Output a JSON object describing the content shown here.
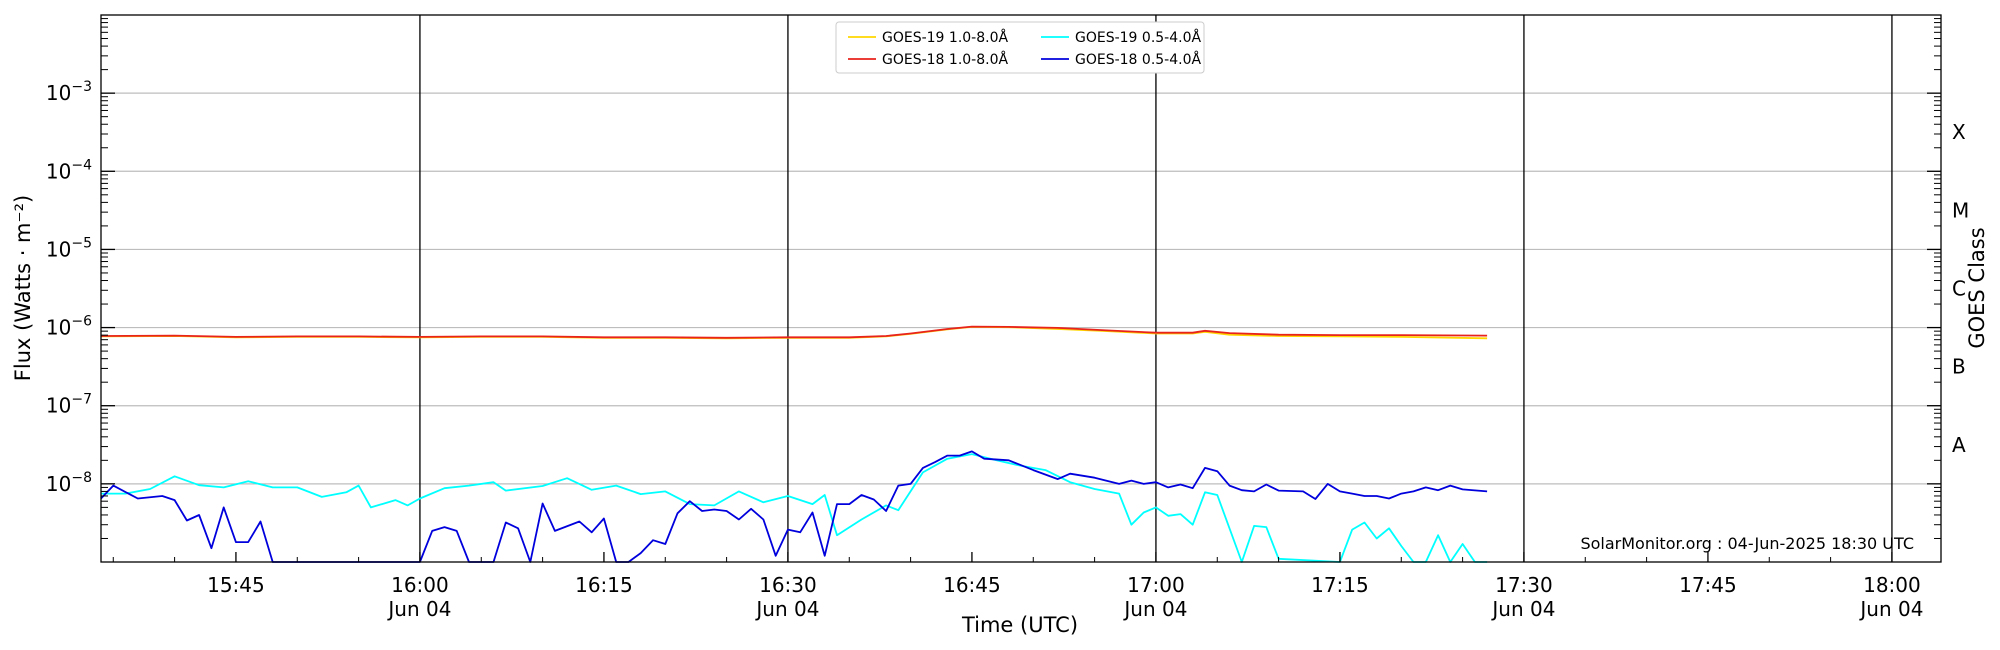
{
  "chart_data": {
    "type": "line",
    "ylabel": "Flux (Watts · m⁻²)",
    "ylabel_right": "GOES Class",
    "xlabel": "Time (UTC)",
    "credit": "SolarMonitor.org : 04-Jun-2025 18:30 UTC",
    "x_range": [
      "15:34",
      "18:04"
    ],
    "y_range": [
      1e-09,
      0.01
    ],
    "y_scale": "log",
    "grid": "horizontal at decades",
    "legend_placement": "top-center",
    "y_ticks": [
      {
        "exp": "-8",
        "value": 1e-08
      },
      {
        "exp": "-7",
        "value": 1e-07
      },
      {
        "exp": "-6",
        "value": 1e-06
      },
      {
        "exp": "-5",
        "value": 1e-05
      },
      {
        "exp": "-4",
        "value": 0.0001
      },
      {
        "exp": "-3",
        "value": 0.001
      }
    ],
    "x_ticks": [
      {
        "t": "15:45",
        "date": ""
      },
      {
        "t": "16:00",
        "date": "Jun 04"
      },
      {
        "t": "16:15",
        "date": ""
      },
      {
        "t": "16:30",
        "date": "Jun 04"
      },
      {
        "t": "16:45",
        "date": ""
      },
      {
        "t": "17:00",
        "date": "Jun 04"
      },
      {
        "t": "17:15",
        "date": ""
      },
      {
        "t": "17:30",
        "date": "Jun 04"
      },
      {
        "t": "17:45",
        "date": ""
      },
      {
        "t": "18:00",
        "date": "Jun 04"
      }
    ],
    "vertical_lines": [
      "16:00",
      "16:30",
      "17:00",
      "17:30",
      "18:00"
    ],
    "goes_classes": [
      {
        "label": "A",
        "value": 3.16e-08
      },
      {
        "label": "B",
        "value": 3.16e-07
      },
      {
        "label": "C",
        "value": 3.16e-06
      },
      {
        "label": "M",
        "value": 3.16e-05
      },
      {
        "label": "X",
        "value": 0.000316
      }
    ],
    "series": [
      {
        "name": "GOES-19 1.0-8.0Å",
        "color": "#ffd700",
        "points": [
          [
            "15:34",
            7.7e-07
          ],
          [
            "15:40",
            7.8e-07
          ],
          [
            "15:45",
            7.5e-07
          ],
          [
            "15:50",
            7.6e-07
          ],
          [
            "15:55",
            7.6e-07
          ],
          [
            "16:00",
            7.5e-07
          ],
          [
            "16:05",
            7.6e-07
          ],
          [
            "16:10",
            7.6e-07
          ],
          [
            "16:15",
            7.4e-07
          ],
          [
            "16:20",
            7.4e-07
          ],
          [
            "16:25",
            7.3e-07
          ],
          [
            "16:30",
            7.4e-07
          ],
          [
            "16:35",
            7.4e-07
          ],
          [
            "16:38",
            7.7e-07
          ],
          [
            "16:40",
            8.3e-07
          ],
          [
            "16:43",
            9.5e-07
          ],
          [
            "16:45",
            1.02e-06
          ],
          [
            "16:48",
            1.01e-06
          ],
          [
            "16:52",
            9.6e-07
          ],
          [
            "16:56",
            9e-07
          ],
          [
            "17:00",
            8.4e-07
          ],
          [
            "17:03",
            8.4e-07
          ],
          [
            "17:04",
            8.8e-07
          ],
          [
            "17:06",
            8.1e-07
          ],
          [
            "17:10",
            7.8e-07
          ],
          [
            "17:15",
            7.7e-07
          ],
          [
            "17:20",
            7.6e-07
          ],
          [
            "17:27",
            7.3e-07
          ]
        ]
      },
      {
        "name": "GOES-18 1.0-8.0Å",
        "color": "#e8231b",
        "points": [
          [
            "15:34",
            7.8e-07
          ],
          [
            "15:40",
            7.9e-07
          ],
          [
            "15:45",
            7.6e-07
          ],
          [
            "15:50",
            7.7e-07
          ],
          [
            "15:55",
            7.7e-07
          ],
          [
            "16:00",
            7.6e-07
          ],
          [
            "16:05",
            7.7e-07
          ],
          [
            "16:10",
            7.7e-07
          ],
          [
            "16:15",
            7.5e-07
          ],
          [
            "16:20",
            7.5e-07
          ],
          [
            "16:25",
            7.4e-07
          ],
          [
            "16:30",
            7.5e-07
          ],
          [
            "16:35",
            7.5e-07
          ],
          [
            "16:38",
            7.8e-07
          ],
          [
            "16:40",
            8.4e-07
          ],
          [
            "16:43",
            9.6e-07
          ],
          [
            "16:45",
            1.03e-06
          ],
          [
            "16:48",
            1.02e-06
          ],
          [
            "16:52",
            9.9e-07
          ],
          [
            "16:56",
            9.2e-07
          ],
          [
            "17:00",
            8.6e-07
          ],
          [
            "17:03",
            8.6e-07
          ],
          [
            "17:04",
            9.1e-07
          ],
          [
            "17:06",
            8.5e-07
          ],
          [
            "17:10",
            8.1e-07
          ],
          [
            "17:15",
            8e-07
          ],
          [
            "17:20",
            8e-07
          ],
          [
            "17:27",
            7.9e-07
          ]
        ]
      },
      {
        "name": "GOES-19 0.5-4.0Å",
        "color": "#00ffff",
        "points": [
          [
            "15:34",
            7.5e-09
          ],
          [
            "15:36",
            7.5e-09
          ],
          [
            "15:38",
            8.6e-09
          ],
          [
            "15:40",
            1.25e-08
          ],
          [
            "15:42",
            9.6e-09
          ],
          [
            "15:44",
            9e-09
          ],
          [
            "15:46",
            1.08e-08
          ],
          [
            "15:48",
            9e-09
          ],
          [
            "15:50",
            9e-09
          ],
          [
            "15:52",
            6.8e-09
          ],
          [
            "15:54",
            7.8e-09
          ],
          [
            "15:55",
            9.5e-09
          ],
          [
            "15:56",
            5e-09
          ],
          [
            "15:58",
            6.2e-09
          ],
          [
            "15:59",
            5.3e-09
          ],
          [
            "16:00",
            6.5e-09
          ],
          [
            "16:02",
            8.8e-09
          ],
          [
            "16:04",
            9.5e-09
          ],
          [
            "16:06",
            1.05e-08
          ],
          [
            "16:07",
            8.2e-09
          ],
          [
            "16:10",
            9.4e-09
          ],
          [
            "16:12",
            1.18e-08
          ],
          [
            "16:14",
            8.4e-09
          ],
          [
            "16:16",
            9.5e-09
          ],
          [
            "16:18",
            7.4e-09
          ],
          [
            "16:20",
            8e-09
          ],
          [
            "16:22",
            5.5e-09
          ],
          [
            "16:24",
            5.3e-09
          ],
          [
            "16:26",
            8e-09
          ],
          [
            "16:28",
            5.8e-09
          ],
          [
            "16:30",
            7e-09
          ],
          [
            "16:32",
            5.5e-09
          ],
          [
            "16:33",
            7.2e-09
          ],
          [
            "16:34",
            2.2e-09
          ],
          [
            "16:36",
            3.5e-09
          ],
          [
            "16:38",
            5.3e-09
          ],
          [
            "16:39",
            4.6e-09
          ],
          [
            "16:41",
            1.4e-08
          ],
          [
            "16:43",
            2.1e-08
          ],
          [
            "16:45",
            2.4e-08
          ],
          [
            "16:47",
            2e-08
          ],
          [
            "16:49",
            1.7e-08
          ],
          [
            "16:51",
            1.5e-08
          ],
          [
            "16:53",
            1.05e-08
          ],
          [
            "16:55",
            8.6e-09
          ],
          [
            "16:57",
            7.5e-09
          ],
          [
            "16:58",
            3e-09
          ],
          [
            "16:59",
            4.3e-09
          ],
          [
            "17:00",
            5e-09
          ],
          [
            "17:01",
            3.9e-09
          ],
          [
            "17:02",
            4.1e-09
          ],
          [
            "17:03",
            3e-09
          ],
          [
            "17:04",
            7.8e-09
          ],
          [
            "17:05",
            7.2e-09
          ],
          [
            "17:07",
            1e-09
          ],
          [
            "17:08",
            2.9e-09
          ],
          [
            "17:09",
            2.8e-09
          ],
          [
            "17:10",
            1.1e-09
          ],
          [
            "17:15",
            1e-09
          ],
          [
            "17:16",
            2.6e-09
          ],
          [
            "17:17",
            3.2e-09
          ],
          [
            "17:18",
            2e-09
          ],
          [
            "17:19",
            2.7e-09
          ],
          [
            "17:20",
            1.6e-09
          ],
          [
            "17:21",
            1e-09
          ],
          [
            "17:22",
            1e-09
          ],
          [
            "17:23",
            2.2e-09
          ],
          [
            "17:24",
            1e-09
          ],
          [
            "17:25",
            1.7e-09
          ],
          [
            "17:26",
            1e-09
          ],
          [
            "17:27",
            1e-09
          ]
        ]
      },
      {
        "name": "GOES-18 0.5-4.0Å",
        "color": "#0000dd",
        "points": [
          [
            "15:34",
            6.5e-09
          ],
          [
            "15:35",
            9.5e-09
          ],
          [
            "15:37",
            6.5e-09
          ],
          [
            "15:39",
            7e-09
          ],
          [
            "15:40",
            6.2e-09
          ],
          [
            "15:41",
            3.4e-09
          ],
          [
            "15:42",
            4e-09
          ],
          [
            "15:43",
            1.5e-09
          ],
          [
            "15:44",
            5e-09
          ],
          [
            "15:45",
            1.8e-09
          ],
          [
            "15:46",
            1.8e-09
          ],
          [
            "15:47",
            3.3e-09
          ],
          [
            "15:48",
            1e-09
          ],
          [
            "16:00",
            1e-09
          ],
          [
            "16:01",
            2.5e-09
          ],
          [
            "16:02",
            2.8e-09
          ],
          [
            "16:03",
            2.5e-09
          ],
          [
            "16:04",
            1e-09
          ],
          [
            "16:06",
            1e-09
          ],
          [
            "16:07",
            3.2e-09
          ],
          [
            "16:08",
            2.7e-09
          ],
          [
            "16:09",
            1e-09
          ],
          [
            "16:10",
            5.6e-09
          ],
          [
            "16:11",
            2.5e-09
          ],
          [
            "16:13",
            3.3e-09
          ],
          [
            "16:14",
            2.4e-09
          ],
          [
            "16:15",
            3.6e-09
          ],
          [
            "16:16",
            1e-09
          ],
          [
            "16:17",
            1e-09
          ],
          [
            "16:18",
            1.3e-09
          ],
          [
            "16:19",
            1.9e-09
          ],
          [
            "16:20",
            1.7e-09
          ],
          [
            "16:21",
            4.2e-09
          ],
          [
            "16:22",
            6e-09
          ],
          [
            "16:23",
            4.5e-09
          ],
          [
            "16:24",
            4.7e-09
          ],
          [
            "16:25",
            4.5e-09
          ],
          [
            "16:26",
            3.5e-09
          ],
          [
            "16:27",
            4.8e-09
          ],
          [
            "16:28",
            3.5e-09
          ],
          [
            "16:29",
            1.2e-09
          ],
          [
            "16:30",
            2.6e-09
          ],
          [
            "16:31",
            2.4e-09
          ],
          [
            "16:32",
            4.3e-09
          ],
          [
            "16:33",
            1.2e-09
          ],
          [
            "16:34",
            5.5e-09
          ],
          [
            "16:35",
            5.5e-09
          ],
          [
            "16:36",
            7.2e-09
          ],
          [
            "16:37",
            6.3e-09
          ],
          [
            "16:38",
            4.5e-09
          ],
          [
            "16:39",
            9.5e-09
          ],
          [
            "16:40",
            1e-08
          ],
          [
            "16:41",
            1.6e-08
          ],
          [
            "16:42",
            1.9e-08
          ],
          [
            "16:43",
            2.3e-08
          ],
          [
            "16:44",
            2.3e-08
          ],
          [
            "16:45",
            2.6e-08
          ],
          [
            "16:46",
            2.1e-08
          ],
          [
            "16:48",
            2e-08
          ],
          [
            "16:50",
            1.5e-08
          ],
          [
            "16:52",
            1.15e-08
          ],
          [
            "16:53",
            1.35e-08
          ],
          [
            "16:55",
            1.2e-08
          ],
          [
            "16:57",
            1e-08
          ],
          [
            "16:58",
            1.1e-08
          ],
          [
            "16:59",
            1e-08
          ],
          [
            "17:00",
            1.05e-08
          ],
          [
            "17:01",
            9e-09
          ],
          [
            "17:02",
            9.8e-09
          ],
          [
            "17:03",
            8.8e-09
          ],
          [
            "17:04",
            1.6e-08
          ],
          [
            "17:05",
            1.45e-08
          ],
          [
            "17:06",
            9.5e-09
          ],
          [
            "17:07",
            8.3e-09
          ],
          [
            "17:08",
            8e-09
          ],
          [
            "17:09",
            9.8e-09
          ],
          [
            "17:10",
            8.2e-09
          ],
          [
            "17:12",
            8e-09
          ],
          [
            "17:13",
            6.4e-09
          ],
          [
            "17:14",
            1e-08
          ],
          [
            "17:15",
            8e-09
          ],
          [
            "17:16",
            7.5e-09
          ],
          [
            "17:17",
            7e-09
          ],
          [
            "17:18",
            7e-09
          ],
          [
            "17:19",
            6.5e-09
          ],
          [
            "17:20",
            7.5e-09
          ],
          [
            "17:21",
            8e-09
          ],
          [
            "17:22",
            9e-09
          ],
          [
            "17:23",
            8.3e-09
          ],
          [
            "17:24",
            9.5e-09
          ],
          [
            "17:25",
            8.5e-09
          ],
          [
            "17:27",
            8e-09
          ]
        ]
      }
    ]
  }
}
